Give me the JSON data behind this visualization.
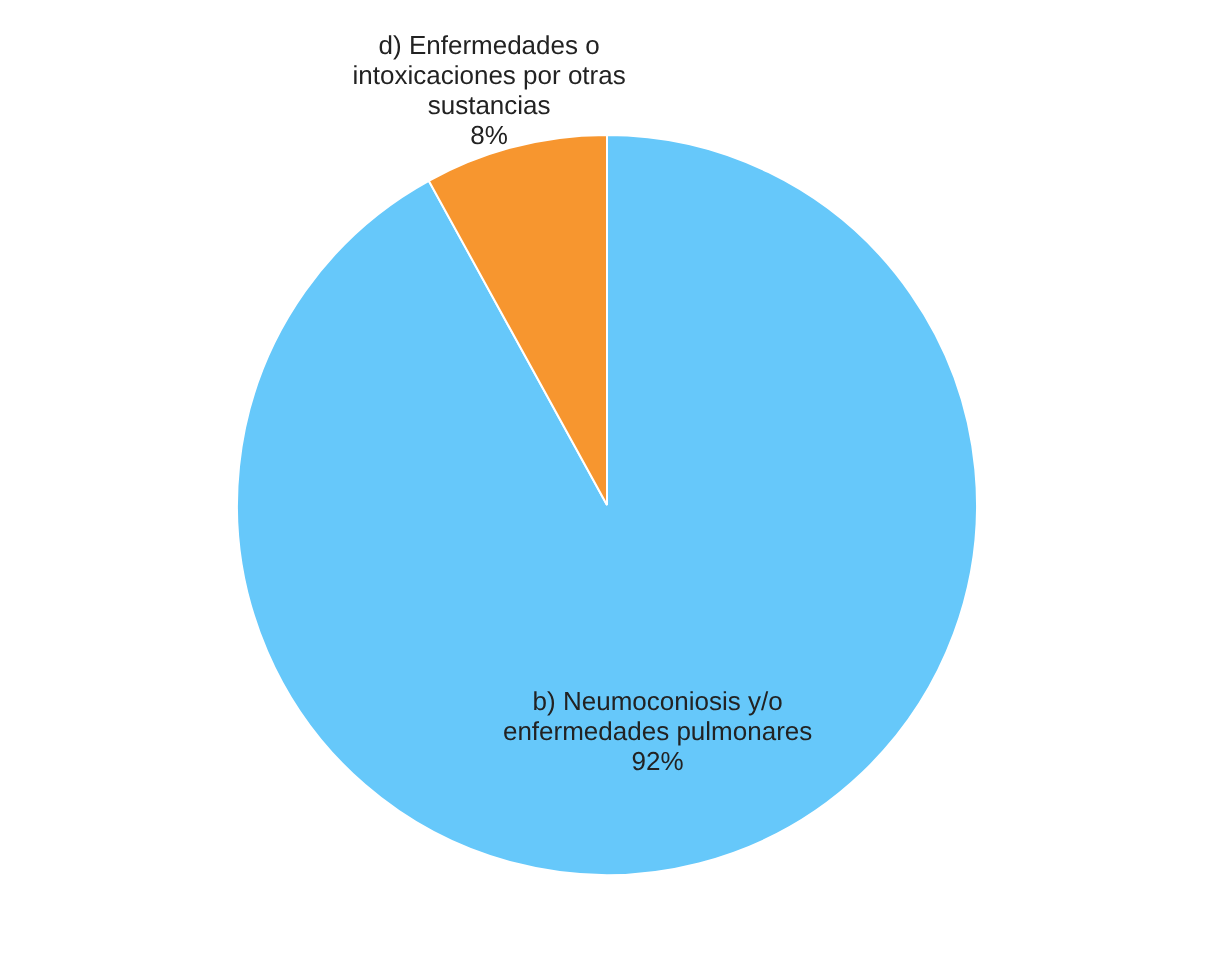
{
  "chart_data": {
    "type": "pie",
    "categories": [
      "b) Neumoconiosis y/o\nenfermedades pulmonares",
      "d)  Enfermedades o\nintoxicaciones por otras\nsustancias"
    ],
    "values": [
      92,
      8
    ],
    "value_labels": [
      "92%",
      "8%"
    ],
    "colors": [
      "#66c8fa",
      "#f7962f"
    ]
  }
}
